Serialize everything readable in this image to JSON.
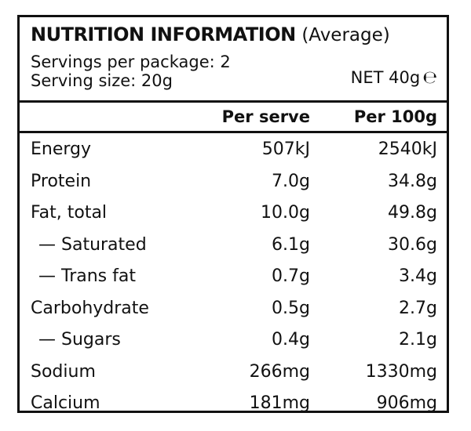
{
  "header": {
    "title": "NUTRITION INFORMATION",
    "title_note": "(Average)",
    "servings_line": "Servings per package: 2",
    "serving_size_line": "Serving size: 20g",
    "net": "NET 40g",
    "estimated_mark": "℮"
  },
  "columns": {
    "per_serve": "Per serve",
    "per_100g": "Per 100g"
  },
  "rows": [
    {
      "label": "Energy",
      "per_serve": "507kJ",
      "per_100g": "2540kJ"
    },
    {
      "label": "Protein",
      "per_serve": "7.0g",
      "per_100g": "34.8g"
    },
    {
      "label": "Fat, total",
      "per_serve": "10.0g",
      "per_100g": "49.8g"
    },
    {
      "label": "— Saturated",
      "per_serve": "6.1g",
      "per_100g": "30.6g"
    },
    {
      "label": "— Trans fat",
      "per_serve": "0.7g",
      "per_100g": "3.4g"
    },
    {
      "label": "Carbohydrate",
      "per_serve": "0.5g",
      "per_100g": "2.7g"
    },
    {
      "label": "— Sugars",
      "per_serve": "0.4g",
      "per_100g": "2.1g"
    },
    {
      "label": "Sodium",
      "per_serve": "266mg",
      "per_100g": "1330mg"
    },
    {
      "label": "Calcium",
      "per_serve": "181mg",
      "per_100g": "906mg"
    }
  ]
}
